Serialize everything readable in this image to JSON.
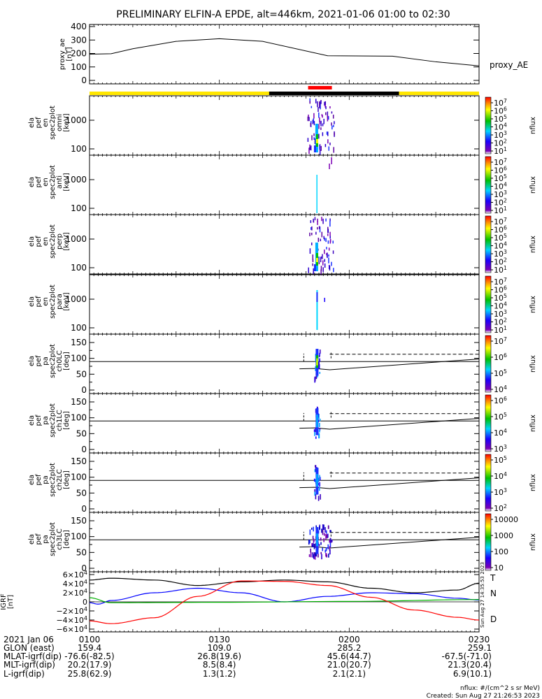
{
  "title": "PRELIMINARY ELFIN-A EPDE, alt=446km, 2021-01-06 01:00 to 02:30",
  "colors": {
    "yellow": "#ffe600",
    "black": "#000000",
    "red": "#ff0000",
    "blue": "#0000ff",
    "green": "#00b000"
  },
  "chart_data": [
    {
      "type": "line",
      "name": "proxy_ae",
      "ylabel": [
        "proxy_ae",
        "[nT]"
      ],
      "right_label": "proxy_AE",
      "yticks": [
        "400",
        "300",
        "200",
        "100",
        "0"
      ],
      "ylim": [
        0,
        400
      ],
      "x_min": [
        0,
        5,
        10,
        20,
        30,
        40,
        55,
        70,
        80,
        90
      ],
      "y": [
        195,
        198,
        235,
        290,
        310,
        290,
        183,
        180,
        138,
        108
      ]
    },
    {
      "type": "heatmap",
      "ylabel": [
        "ela",
        "pef",
        "en",
        "spec2plot",
        "omni",
        "[keV]"
      ],
      "yticks": [
        "1000",
        "100"
      ],
      "cbar_ticks": [
        "10^7",
        "10^6",
        "10^5",
        "10^4",
        "10^3",
        "10^2",
        "10^1"
      ],
      "cbar_label": "nflux"
    },
    {
      "type": "heatmap",
      "ylabel": [
        "ela",
        "pef",
        "en",
        "spec2plot",
        "anti",
        "[keV]"
      ],
      "yticks": [
        "1000",
        "100"
      ],
      "cbar_ticks": [
        "10^7",
        "10^6",
        "10^5",
        "10^4",
        "10^3",
        "10^2",
        "10^1"
      ],
      "cbar_label": "nflux"
    },
    {
      "type": "heatmap",
      "ylabel": [
        "ela",
        "pef",
        "en",
        "spec2plot",
        "perp",
        "[keV]"
      ],
      "yticks": [
        "1000",
        "100"
      ],
      "cbar_ticks": [
        "10^7",
        "10^6",
        "10^5",
        "10^4",
        "10^3",
        "10^2",
        "10^1"
      ],
      "cbar_label": "nflux"
    },
    {
      "type": "heatmap",
      "ylabel": [
        "ela",
        "pef",
        "en",
        "spec2plot",
        "para",
        "[keV]"
      ],
      "yticks": [
        "1000",
        "100"
      ],
      "cbar_ticks": [
        "10^7",
        "10^6",
        "10^5",
        "10^4",
        "10^3",
        "10^2",
        "10^1"
      ],
      "cbar_label": "nflux"
    },
    {
      "type": "heatmap",
      "ylabel": [
        "ela",
        "pef",
        "pa",
        "spec2plot",
        "ch0LC",
        "[deg]"
      ],
      "yticks": [
        "150",
        "100",
        "50",
        "0"
      ],
      "cbar_ticks": [
        "10^7",
        "10^6",
        "10^5",
        "10^4"
      ],
      "cbar_label": "nflux"
    },
    {
      "type": "heatmap",
      "ylabel": [
        "ela",
        "pef",
        "pa",
        "spec2plot",
        "ch1LC",
        "[deg]"
      ],
      "yticks": [
        "150",
        "100",
        "50",
        "0"
      ],
      "cbar_ticks": [
        "10^6",
        "10^5",
        "10^4",
        "10^3"
      ],
      "cbar_label": "nflux"
    },
    {
      "type": "heatmap",
      "ylabel": [
        "ela",
        "pef",
        "pa",
        "spec2plot",
        "ch2LC",
        "[deg]"
      ],
      "yticks": [
        "150",
        "100",
        "50",
        "0"
      ],
      "cbar_ticks": [
        "10^5",
        "10^4",
        "10^3",
        "10^2"
      ],
      "cbar_label": "nflux"
    },
    {
      "type": "heatmap",
      "ylabel": [
        "ela",
        "pef",
        "pa",
        "spec2plot",
        "ch3LC",
        "[deg]"
      ],
      "yticks": [
        "150",
        "100",
        "50",
        "0"
      ],
      "cbar_ticks": [
        "10000",
        "1000",
        "100",
        "10"
      ],
      "cbar_label": "nflux"
    },
    {
      "type": "line",
      "name": "IGRF",
      "ylabel": [
        "IGRF",
        "[nT]"
      ],
      "yticks": [
        "6×10^4",
        "4×10^4",
        "2×10^4",
        "0",
        "−2×10^4",
        "−4×10^4",
        "−6×10^4"
      ],
      "ylim": [
        -60000,
        60000
      ],
      "series": [
        {
          "name": "T",
          "x_min": [
            0,
            5,
            15,
            25,
            35,
            45,
            55,
            65,
            75,
            85,
            90
          ],
          "y": [
            48000,
            52000,
            48000,
            36000,
            44000,
            48000,
            44000,
            30000,
            20000,
            26000,
            41000
          ]
        },
        {
          "name": "N",
          "x_min": [
            0,
            2,
            5,
            15,
            25,
            35,
            45,
            55,
            65,
            75,
            85,
            90
          ],
          "y": [
            -2000,
            -5000,
            3000,
            20000,
            30000,
            20000,
            0,
            12000,
            20000,
            18000,
            8000,
            4000
          ]
        },
        {
          "name": "E",
          "x_min": [
            0,
            5,
            30,
            60,
            90
          ],
          "y": [
            9000,
            -2000,
            -1000,
            1000,
            5000
          ]
        },
        {
          "name": "D",
          "x_min": [
            0,
            5,
            15,
            25,
            35,
            45,
            55,
            65,
            75,
            85,
            90
          ],
          "y": [
            -42000,
            -48000,
            -35000,
            12000,
            46000,
            45000,
            36000,
            10000,
            -18000,
            -34000,
            -40000
          ]
        }
      ],
      "side_labels": [
        "T",
        "N",
        "D"
      ]
    }
  ],
  "side_stamp": "Sun Aug 27 14:35:53 2023",
  "time_axis": {
    "date": "2021 Jan 06",
    "ticks": [
      "0100",
      "0130",
      "0200",
      "0230"
    ],
    "rows": [
      {
        "label": "GLON (east)",
        "values": [
          "159.4",
          "109.0",
          "285.2",
          "259.1"
        ]
      },
      {
        "label": "MLAT-igrf(dip)",
        "values": [
          "-76.6(-82.5)",
          "26.8(19.6)",
          "45.6(44.7)",
          "-67.5(-71.0)"
        ]
      },
      {
        "label": "MLT-igrf(dip)",
        "values": [
          "20.2(17.9)",
          "8.5(8.4)",
          "21.0(20.7)",
          "21.3(20.4)"
        ]
      },
      {
        "label": "L-igrf(dip)",
        "values": [
          "25.8(62.9)",
          "1.3(1.2)",
          "2.1(2.1)",
          "6.9(10.1)"
        ]
      }
    ]
  },
  "footer": {
    "units": "nflux: #/(cm^2 s sr MeV)",
    "created": "Created: Sun Aug 27 21:26:53 2023"
  }
}
